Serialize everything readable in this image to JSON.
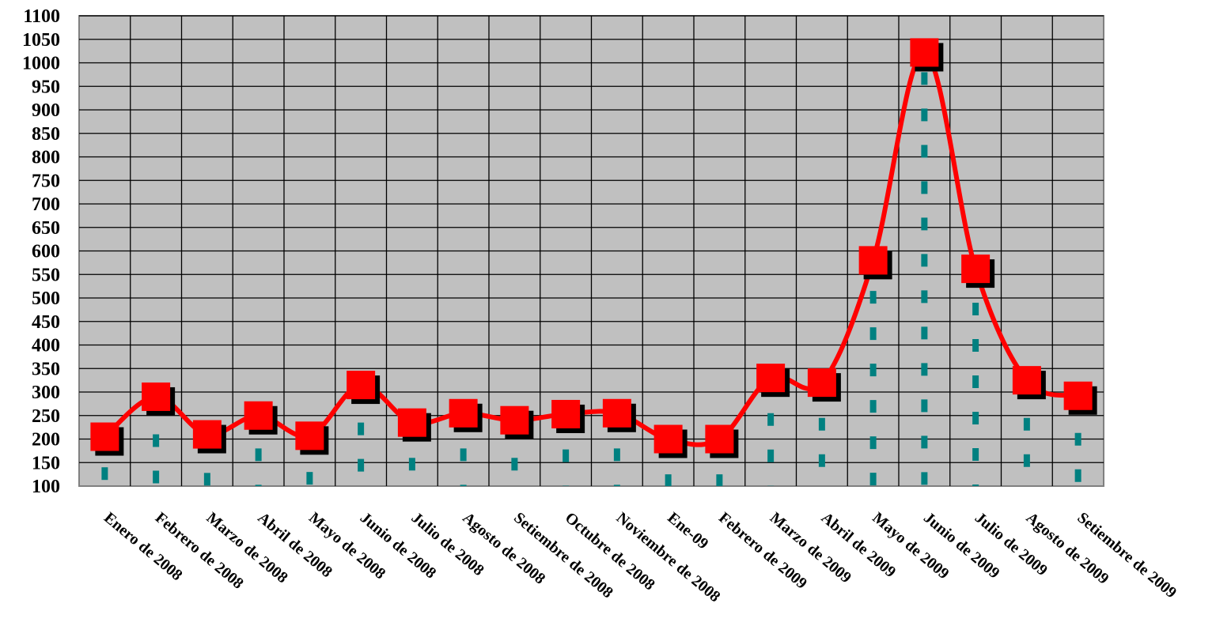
{
  "chart_data": {
    "type": "line",
    "title": "",
    "xlabel": "",
    "ylabel": "",
    "ylim": [
      100,
      1100
    ],
    "ytick_step": 50,
    "grid": true,
    "plot_background": "#c0c0c0",
    "categories": [
      "Enero de 2008",
      "Febrero de 2008",
      "Marzo de 2008",
      "Abril de 2008",
      "Mayo de 2008",
      "Junio de 2008",
      "Julio de 2008",
      "Agosto de 2008",
      "Setiembre de 2008",
      "Octubre de 2008",
      "Noviembre de 2008",
      "Ene-09",
      "Febrero de 2009",
      "Marzo de 2009",
      "Abril de 2009",
      "Mayo de 2009",
      "Junio de 2009",
      "Julio de 2009",
      "Agosto de 2009",
      "Setiembre de 2009"
    ],
    "series": [
      {
        "values": [
          205,
          290,
          210,
          250,
          207,
          315,
          235,
          255,
          240,
          253,
          255,
          200,
          200,
          330,
          320,
          580,
          1022,
          562,
          325,
          292
        ],
        "color": "#ff0000",
        "style": "smooth-line",
        "marker": "square"
      },
      {
        "values": [
          140,
          210,
          128,
          180,
          130,
          235,
          160,
          180,
          160,
          178,
          180,
          125,
          125,
          255,
          245,
          515,
          980,
          490,
          245,
          213
        ],
        "color": "#008080",
        "style": "dotted-drop"
      }
    ]
  }
}
